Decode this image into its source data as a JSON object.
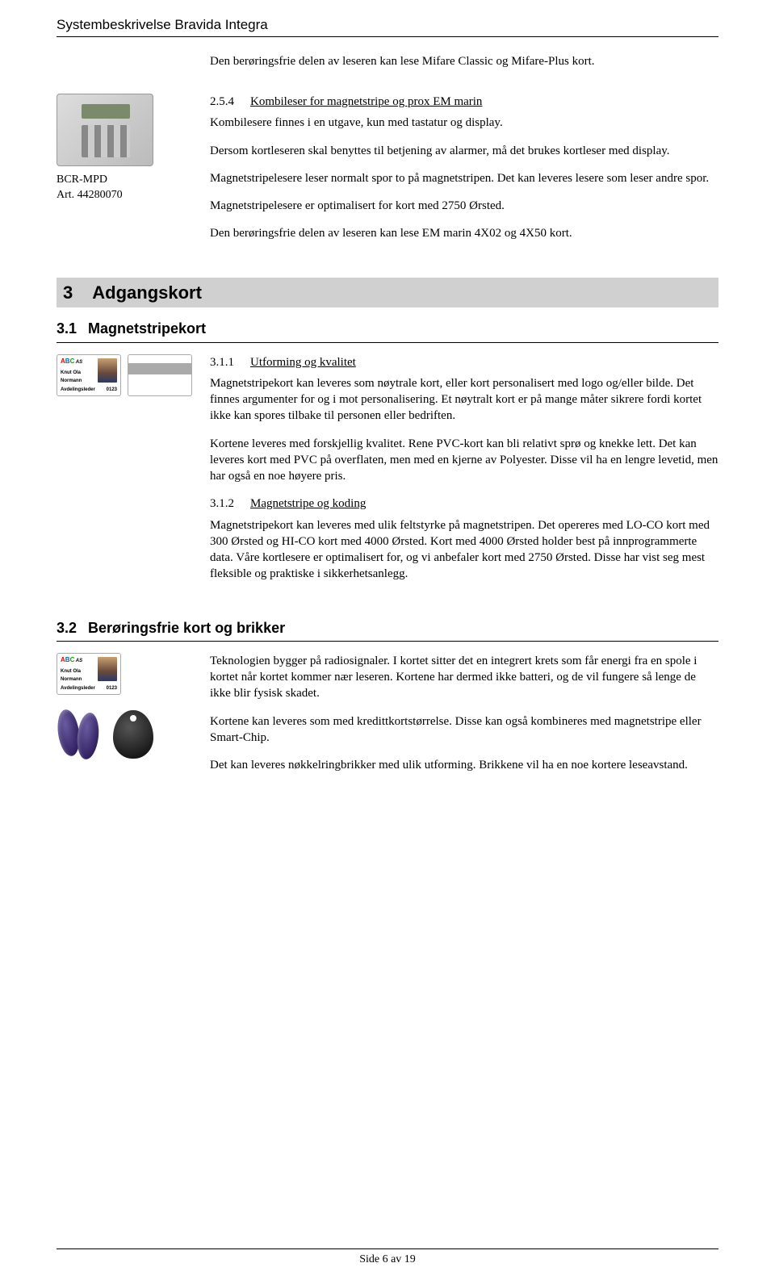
{
  "header": "Systembeskrivelse Bravida Integra",
  "intro": "Den berøringsfrie delen av leseren kan lese Mifare Classic og Mifare-Plus kort.",
  "device": {
    "caption_line1": "BCR-MPD",
    "caption_line2": "Art. 44280070",
    "heading_num": "2.5.4",
    "heading_title": "Kombileser for magnetstripe og prox EM marin",
    "p1": "Kombilesere finnes i en utgave, kun med tastatur og display.",
    "p2": "Dersom kortleseren skal benyttes til betjening av alarmer, må det brukes kortleser med display.",
    "p3": "Magnetstripelesere leser normalt spor to på magnetstripen. Det kan leveres lesere som leser andre spor.",
    "p4": "Magnetstripelesere er optimalisert for kort med 2750 Ørsted.",
    "p5": "Den berøringsfrie delen av leseren kan lese EM marin 4X02 og 4X50 kort."
  },
  "section3": {
    "num": "3",
    "title": "Adgangskort",
    "sub1": {
      "num": "3.1",
      "title": "Magnetstripekort",
      "s311_num": "3.1.1",
      "s311_title": "Utforming og kvalitet",
      "s311_p1": "Magnetstripekort kan leveres som nøytrale kort, eller kort personalisert med logo og/eller bilde. Det finnes argumenter for og i mot personalisering. Et nøytralt kort er på mange måter sikrere fordi kortet ikke kan spores tilbake til personen eller bedriften.",
      "s311_p2": "Kortene leveres med forskjellig kvalitet. Rene PVC-kort kan bli relativt sprø og knekke lett. Det kan leveres kort med PVC på overflaten, men med en kjerne av Polyester. Disse vil ha en lengre levetid, men har også en noe høyere pris.",
      "s312_num": "3.1.2",
      "s312_title": "Magnetstripe og koding",
      "s312_p1": "Magnetstripekort kan leveres med ulik feltstyrke på magnetstripen. Det opereres med LO-CO kort med 300 Ørsted og HI-CO kort med 4000 Ørsted. Kort med 4000 Ørsted holder best på innprogrammerte data. Våre kortlesere er optimalisert for, og vi anbefaler kort med 2750 Ørsted. Disse har vist seg mest fleksible og praktiske i sikkerhetsanlegg."
    },
    "sub2": {
      "num": "3.2",
      "title": "Berøringsfrie kort og brikker",
      "p1": "Teknologien bygger på radiosignaler. I kortet sitter det en integrert krets som får energi fra en spole i kortet når kortet kommer nær leseren. Kortene har dermed ikke batteri, og de vil fungere så lenge de ikke blir fysisk skadet.",
      "p2": "Kortene kan leveres som med kredittkortstørrelse. Disse kan også kombineres med magnetstripe eller Smart-Chip.",
      "p3": "Det kan leveres nøkkelringbrikker med ulik utforming. Brikkene vil ha en noe kortere leseavstand."
    }
  },
  "card": {
    "name1": "Knut Ola",
    "name2": "Normann",
    "role": "Avdelingsleder",
    "idnum": "0123"
  },
  "footer": "Side 6 av 19"
}
